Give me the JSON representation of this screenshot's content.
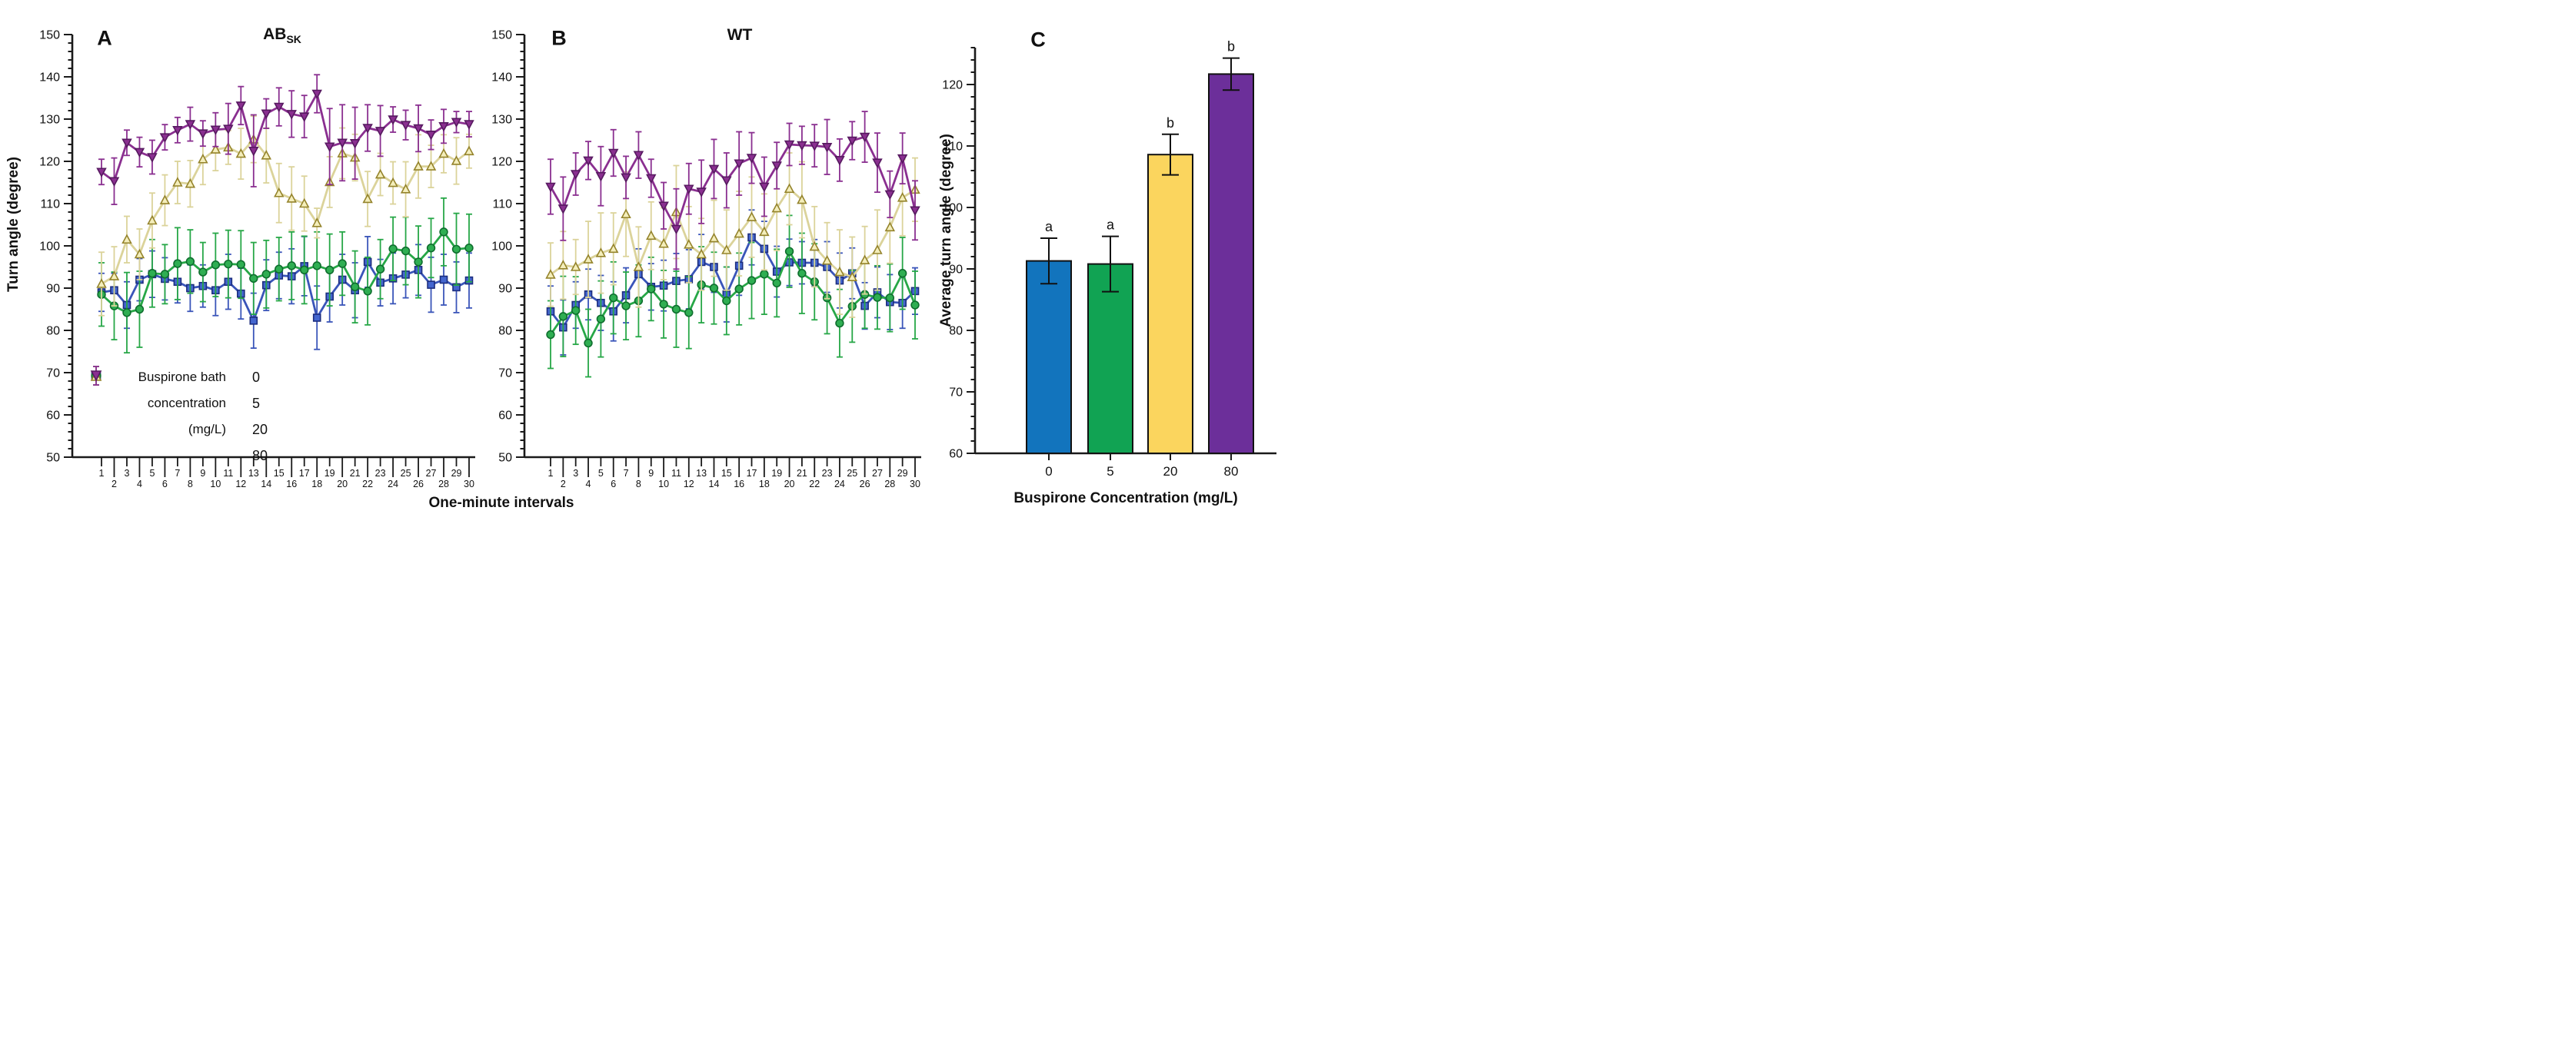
{
  "figure": {
    "panels": [
      {
        "letter": "A",
        "title": "AB",
        "title_sub": "SK",
        "ylabel": "Turn angle (degree)"
      },
      {
        "letter": "B",
        "title": "WT",
        "title_sub": ""
      },
      {
        "letter": "C",
        "ylabel": "Average turn angle (degree)",
        "xlabel": "Buspirone Concentration (mg/L)"
      }
    ],
    "shared_xlabel": "One-minute intervals",
    "legend": {
      "items": [
        {
          "prefix": "Buspirone bath",
          "marker": "square",
          "series_key": "c0",
          "value": "0"
        },
        {
          "prefix": "concentration",
          "marker": "circle",
          "series_key": "c5",
          "value": "5"
        },
        {
          "prefix": "(mg/L)",
          "marker": "triangle-up",
          "series_key": "c20",
          "value": "20"
        },
        {
          "prefix": "",
          "marker": "triangle-down",
          "series_key": "c80",
          "value": "80"
        }
      ]
    }
  },
  "colors": {
    "axis": "#1a1a1a",
    "series": {
      "c0": {
        "line": "#3a55b9",
        "fill": "#4466cf",
        "edge": "#1c2d7e"
      },
      "c5": {
        "line": "#27a747",
        "fill": "#2fae52",
        "edge": "#0f6e2e"
      },
      "c20": {
        "line": "#dbd39a",
        "fill": "#f4eebb",
        "edge": "#94832b"
      },
      "c80": {
        "line": "#8a2f90",
        "fill": "#8a2f90",
        "edge": "#571a60"
      }
    },
    "bars": [
      "#1274bd",
      "#11a353",
      "#fbd55e",
      "#6c2f9a"
    ]
  },
  "chart_data": [
    {
      "type": "line",
      "panel": "A",
      "title": "AB_SK",
      "xlabel": "One-minute intervals",
      "ylabel": "Turn angle (degree)",
      "ylim": [
        50,
        150
      ],
      "ytick_major": 10,
      "ytick_minor": 2,
      "x": [
        1,
        2,
        3,
        4,
        5,
        6,
        7,
        8,
        9,
        10,
        11,
        12,
        13,
        14,
        15,
        16,
        17,
        18,
        19,
        20,
        21,
        22,
        23,
        24,
        25,
        26,
        27,
        28,
        29,
        30
      ],
      "legend_position": "lower-left",
      "grid": false,
      "series": [
        {
          "name": "0",
          "marker": "square",
          "color_key": "c0",
          "values": [
            89.0,
            89.5,
            86.0,
            92.0,
            93.3,
            92.2,
            91.5,
            90.0,
            90.5,
            89.5,
            91.5,
            88.7,
            82.3,
            90.7,
            93.0,
            92.8,
            95.2,
            83.0,
            88.0,
            92.0,
            89.5,
            96.2,
            91.3,
            92.3,
            93.2,
            94.3,
            90.8,
            92.0,
            90.2,
            91.8
          ],
          "errors": [
            4.5,
            4.0,
            5.5,
            5.0,
            5.5,
            5.0,
            5.0,
            5.5,
            5.0,
            6.0,
            6.5,
            6.0,
            6.5,
            6.0,
            5.5,
            6.5,
            7.0,
            7.5,
            6.0,
            6.0,
            6.5,
            6.0,
            5.5,
            6.0,
            5.5,
            6.0,
            6.5,
            6.0,
            6.0,
            6.5
          ]
        },
        {
          "name": "5",
          "marker": "circle",
          "color_key": "c5",
          "values": [
            88.5,
            85.8,
            84.2,
            85.0,
            93.5,
            93.3,
            95.8,
            96.3,
            93.8,
            95.5,
            95.7,
            95.6,
            92.3,
            93.3,
            94.5,
            95.3,
            94.3,
            95.3,
            94.3,
            95.8,
            90.3,
            89.3,
            94.5,
            99.3,
            98.8,
            96.2,
            99.5,
            103.3,
            99.2,
            99.5
          ],
          "errors": [
            7.5,
            8.0,
            9.5,
            9.0,
            8.0,
            7.0,
            8.5,
            7.5,
            7.0,
            7.5,
            8.0,
            8.0,
            8.5,
            8.0,
            7.5,
            8.0,
            8.0,
            8.0,
            8.5,
            7.5,
            8.5,
            8.0,
            7.0,
            7.5,
            8.0,
            8.5,
            7.0,
            8.0,
            8.5,
            8.0
          ]
        },
        {
          "name": "20",
          "marker": "triangle-up",
          "color_key": "c20",
          "values": [
            91.0,
            92.8,
            101.5,
            98.0,
            106.0,
            110.8,
            115.0,
            114.7,
            120.5,
            122.8,
            123.3,
            121.8,
            125.2,
            121.4,
            112.5,
            111.2,
            110.0,
            105.4,
            115.1,
            121.9,
            120.9,
            111.1,
            116.9,
            114.9,
            113.4,
            118.8,
            118.8,
            121.8,
            120.1,
            122.4
          ],
          "errors": [
            7.5,
            7.0,
            5.5,
            6.0,
            6.5,
            6.0,
            5.0,
            5.5,
            6.0,
            5.0,
            4.0,
            6.0,
            5.5,
            6.5,
            7.0,
            7.5,
            6.5,
            3.5,
            6.0,
            6.0,
            5.5,
            6.5,
            5.0,
            5.0,
            6.5,
            7.5,
            5.0,
            4.5,
            5.5,
            4.0
          ]
        },
        {
          "name": "80",
          "marker": "triangle-down",
          "color_key": "c80",
          "values": [
            117.5,
            115.3,
            124.4,
            122.2,
            121.0,
            125.7,
            127.4,
            128.8,
            126.6,
            127.5,
            127.7,
            133.2,
            122.5,
            131.3,
            132.9,
            131.2,
            130.6,
            136.0,
            123.5,
            124.4,
            124.3,
            127.9,
            127.2,
            129.9,
            128.6,
            127.8,
            126.3,
            128.3,
            129.3,
            128.8
          ],
          "errors": [
            3.0,
            5.5,
            3.0,
            3.5,
            4.0,
            3.0,
            3.0,
            4.0,
            3.0,
            4.0,
            6.0,
            4.5,
            8.5,
            3.5,
            4.5,
            5.5,
            5.0,
            4.5,
            9.0,
            9.0,
            8.5,
            5.5,
            6.0,
            3.0,
            3.5,
            5.5,
            3.5,
            4.0,
            2.5,
            3.0
          ]
        }
      ]
    },
    {
      "type": "line",
      "panel": "B",
      "title": "WT",
      "xlabel": "One-minute intervals",
      "ylabel": "",
      "ylim": [
        50,
        150
      ],
      "ytick_major": 10,
      "ytick_minor": 2,
      "x": [
        1,
        2,
        3,
        4,
        5,
        6,
        7,
        8,
        9,
        10,
        11,
        12,
        13,
        14,
        15,
        16,
        17,
        18,
        19,
        20,
        21,
        22,
        23,
        24,
        25,
        26,
        27,
        28,
        29,
        30
      ],
      "grid": false,
      "series": [
        {
          "name": "0",
          "marker": "square",
          "color_key": "c0",
          "values": [
            84.5,
            80.7,
            86.0,
            88.5,
            86.5,
            84.5,
            88.3,
            93.3,
            90.3,
            90.6,
            91.7,
            92.1,
            96.2,
            95.0,
            88.5,
            95.3,
            102.0,
            99.3,
            93.9,
            96.1,
            96.0,
            96.0,
            95.0,
            91.8,
            93.5,
            85.8,
            89.0,
            86.7,
            86.5,
            89.3
          ],
          "errors": [
            6.0,
            6.5,
            5.5,
            6.0,
            6.5,
            7.0,
            6.5,
            6.0,
            5.5,
            6.0,
            6.5,
            7.0,
            6.5,
            6.0,
            6.5,
            7.0,
            6.5,
            6.5,
            6.0,
            5.5,
            5.0,
            5.5,
            6.0,
            6.5,
            6.0,
            5.5,
            6.0,
            6.5,
            6.0,
            5.5
          ]
        },
        {
          "name": "5",
          "marker": "circle",
          "color_key": "c5",
          "values": [
            79.0,
            83.3,
            84.7,
            77.0,
            82.7,
            87.7,
            85.8,
            87.0,
            89.8,
            86.2,
            85.0,
            84.2,
            90.8,
            90.0,
            87.0,
            89.8,
            91.8,
            93.3,
            91.2,
            98.7,
            93.5,
            91.5,
            87.7,
            81.7,
            85.7,
            88.5,
            87.8,
            87.7,
            93.5,
            86.0
          ],
          "errors": [
            8.0,
            9.5,
            8.0,
            8.0,
            9.0,
            8.5,
            8.0,
            8.5,
            7.5,
            8.0,
            9.0,
            8.5,
            9.0,
            8.5,
            8.0,
            8.5,
            9.0,
            9.5,
            8.0,
            8.5,
            9.5,
            9.0,
            8.5,
            8.0,
            8.5,
            8.0,
            7.5,
            8.0,
            8.5,
            8.0
          ]
        },
        {
          "name": "20",
          "marker": "triangle-up",
          "color_key": "c20",
          "values": [
            93.2,
            95.4,
            95.0,
            96.8,
            98.3,
            99.3,
            107.5,
            95.0,
            102.4,
            100.5,
            108.0,
            100.3,
            98.0,
            101.8,
            99.0,
            102.9,
            106.8,
            103.3,
            108.9,
            113.5,
            110.9,
            99.8,
            96.5,
            93.8,
            92.6,
            96.6,
            99.0,
            104.4,
            111.4,
            113.3
          ],
          "errors": [
            7.5,
            8.0,
            6.5,
            9.0,
            9.5,
            8.5,
            10.0,
            9.5,
            8.0,
            8.5,
            11.0,
            9.0,
            8.5,
            9.0,
            9.5,
            10.0,
            9.5,
            9.0,
            10.0,
            8.5,
            9.0,
            9.5,
            9.0,
            10.0,
            9.5,
            8.0,
            9.5,
            8.5,
            9.0,
            7.5
          ]
        },
        {
          "name": "80",
          "marker": "triangle-down",
          "color_key": "c80",
          "values": [
            114.0,
            108.8,
            117.0,
            120.2,
            116.5,
            122.0,
            116.2,
            121.5,
            116.0,
            109.5,
            104.0,
            113.5,
            112.8,
            118.2,
            115.5,
            119.5,
            120.8,
            114.0,
            119.0,
            124.0,
            123.8,
            123.7,
            123.4,
            120.3,
            124.9,
            125.8,
            119.7,
            112.2,
            120.7,
            108.4
          ],
          "errors": [
            6.5,
            7.5,
            5.0,
            4.5,
            7.0,
            5.5,
            5.0,
            5.5,
            4.5,
            5.5,
            9.5,
            6.0,
            7.5,
            7.0,
            6.5,
            7.5,
            6.0,
            7.0,
            5.5,
            5.0,
            4.5,
            5.0,
            6.5,
            5.0,
            4.5,
            6.0,
            7.0,
            5.5,
            6.0,
            7.0
          ]
        }
      ]
    },
    {
      "type": "bar",
      "panel": "C",
      "title": "",
      "xlabel": "Buspirone Concentration (mg/L)",
      "ylabel": "Average turn angle (degree)",
      "ylim": [
        60,
        126
      ],
      "ytick_major": 10,
      "ytick_minor": 2,
      "categories": [
        "0",
        "5",
        "20",
        "80"
      ],
      "values": [
        91.3,
        90.8,
        108.6,
        121.7
      ],
      "errors": [
        3.7,
        4.5,
        3.3,
        2.6
      ],
      "sig_letters": [
        "a",
        "a",
        "b",
        "b"
      ],
      "grid": false,
      "legend_position": "none"
    }
  ]
}
